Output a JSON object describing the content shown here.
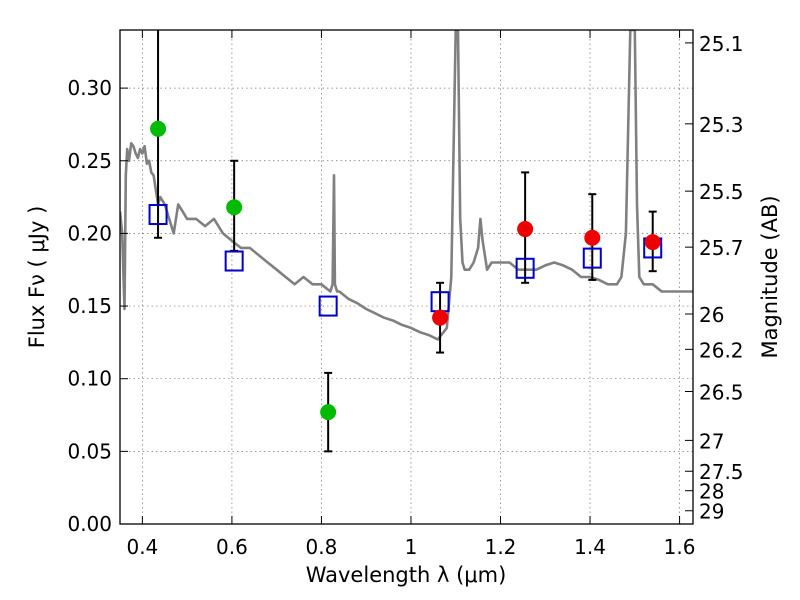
{
  "chart_data": {
    "type": "scatter",
    "title": "",
    "xlabel": "Wavelength  λ (μm)",
    "ylabel": "Flux  Fν  ( μJy )",
    "y2label": "Magnitude (AB)",
    "xlim": [
      0.35,
      1.63
    ],
    "ylim": [
      0.0,
      0.34
    ],
    "grid": true,
    "x_ticks": [
      0.4,
      0.6,
      0.8,
      1.0,
      1.2,
      1.4,
      1.6
    ],
    "x_tick_labels": [
      "0.4",
      "0.6",
      "0.8",
      "1",
      "1.2",
      "1.4",
      "1.6"
    ],
    "y_ticks": [
      0.0,
      0.05,
      0.1,
      0.15,
      0.2,
      0.25,
      0.3
    ],
    "y_tick_labels": [
      "0.00",
      "0.05",
      "0.10",
      "0.15",
      "0.20",
      "0.25",
      "0.30"
    ],
    "y2_tick_labels": [
      "25.1",
      "25.3",
      "25.5",
      "25.7",
      "26",
      "26.2",
      "26.5",
      "27",
      "27.5",
      "28",
      "29"
    ],
    "colors": {
      "model": "#808080",
      "green_points": "#00bb00",
      "red_points": "#ee0000",
      "squares": "#0000cc",
      "errorbars": "#000000"
    },
    "series": [
      {
        "marker": "circle",
        "color": "#00bb00",
        "points": [
          {
            "x": 0.435,
            "y": 0.272,
            "yerr_low": 0.075,
            "yerr_high": 0.07
          },
          {
            "x": 0.605,
            "y": 0.218,
            "yerr_low": 0.03,
            "yerr_high": 0.032
          },
          {
            "x": 0.815,
            "y": 0.077,
            "yerr_low": 0.027,
            "yerr_high": 0.027
          }
        ]
      },
      {
        "marker": "circle",
        "color": "#ee0000",
        "points": [
          {
            "x": 1.065,
            "y": 0.142,
            "yerr_low": 0.024,
            "yerr_high": 0.024
          },
          {
            "x": 1.255,
            "y": 0.203,
            "yerr_low": 0.037,
            "yerr_high": 0.039
          },
          {
            "x": 1.405,
            "y": 0.197,
            "yerr_low": 0.029,
            "yerr_high": 0.03
          },
          {
            "x": 1.54,
            "y": 0.194,
            "yerr_low": 0.02,
            "yerr_high": 0.021
          }
        ]
      },
      {
        "marker": "open-square",
        "color": "#0000cc",
        "points": [
          {
            "x": 0.435,
            "y": 0.213
          },
          {
            "x": 0.605,
            "y": 0.181
          },
          {
            "x": 0.815,
            "y": 0.15
          },
          {
            "x": 1.065,
            "y": 0.153
          },
          {
            "x": 1.255,
            "y": 0.176
          },
          {
            "x": 1.405,
            "y": 0.183
          },
          {
            "x": 1.54,
            "y": 0.19
          }
        ]
      },
      {
        "marker": "line",
        "color": "#808080",
        "x": [
          0.35,
          0.355,
          0.36,
          0.363,
          0.366,
          0.37,
          0.375,
          0.38,
          0.385,
          0.39,
          0.395,
          0.4,
          0.405,
          0.41,
          0.415,
          0.42,
          0.425,
          0.43,
          0.435,
          0.44,
          0.45,
          0.46,
          0.47,
          0.48,
          0.49,
          0.5,
          0.52,
          0.54,
          0.56,
          0.58,
          0.6,
          0.62,
          0.64,
          0.66,
          0.68,
          0.7,
          0.72,
          0.74,
          0.76,
          0.78,
          0.8,
          0.82,
          0.825,
          0.828,
          0.83,
          0.835,
          0.84,
          0.86,
          0.88,
          0.9,
          0.92,
          0.94,
          0.96,
          0.98,
          1.0,
          1.02,
          1.04,
          1.06,
          1.08,
          1.09,
          1.1,
          1.105,
          1.11,
          1.115,
          1.12,
          1.13,
          1.14,
          1.15,
          1.155,
          1.16,
          1.17,
          1.18,
          1.2,
          1.22,
          1.24,
          1.26,
          1.28,
          1.3,
          1.32,
          1.34,
          1.36,
          1.38,
          1.4,
          1.42,
          1.44,
          1.46,
          1.47,
          1.48,
          1.49,
          1.5,
          1.505,
          1.51,
          1.52,
          1.53,
          1.54,
          1.56,
          1.58,
          1.6,
          1.63
        ],
        "y": [
          0.215,
          0.2,
          0.148,
          0.24,
          0.258,
          0.25,
          0.262,
          0.26,
          0.255,
          0.252,
          0.258,
          0.255,
          0.26,
          0.248,
          0.25,
          0.242,
          0.24,
          0.23,
          0.22,
          0.225,
          0.22,
          0.21,
          0.2,
          0.22,
          0.215,
          0.21,
          0.21,
          0.205,
          0.21,
          0.2,
          0.195,
          0.19,
          0.19,
          0.185,
          0.18,
          0.175,
          0.17,
          0.165,
          0.17,
          0.165,
          0.165,
          0.16,
          0.165,
          0.24,
          0.165,
          0.16,
          0.16,
          0.155,
          0.152,
          0.148,
          0.145,
          0.142,
          0.14,
          0.137,
          0.135,
          0.132,
          0.13,
          0.127,
          0.135,
          0.17,
          0.34,
          0.34,
          0.21,
          0.18,
          0.175,
          0.175,
          0.18,
          0.19,
          0.21,
          0.195,
          0.175,
          0.18,
          0.18,
          0.18,
          0.175,
          0.175,
          0.175,
          0.178,
          0.18,
          0.178,
          0.175,
          0.17,
          0.17,
          0.168,
          0.165,
          0.165,
          0.17,
          0.2,
          0.34,
          0.34,
          0.22,
          0.17,
          0.165,
          0.165,
          0.165,
          0.16,
          0.16,
          0.16,
          0.16
        ]
      }
    ]
  }
}
